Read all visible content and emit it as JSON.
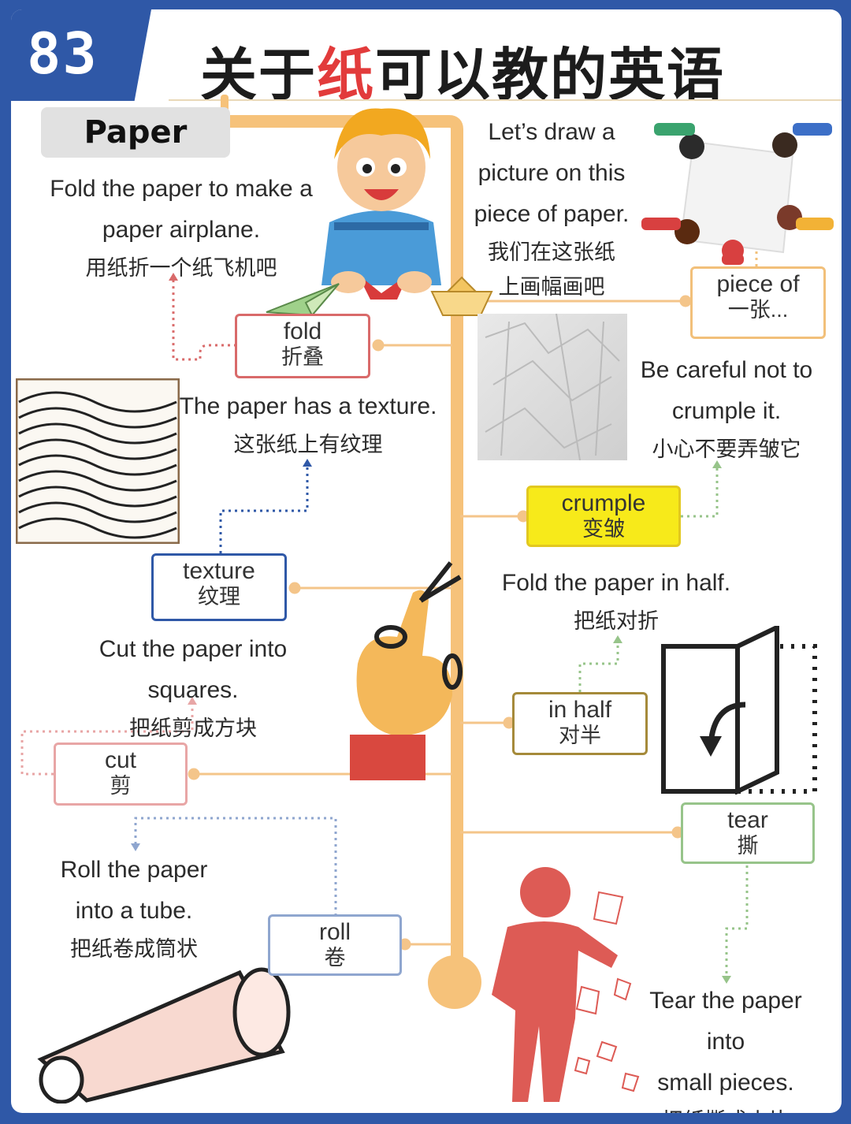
{
  "header": {
    "number": "83",
    "title_before": "关于",
    "title_highlight": "纸",
    "title_after": "可以教的英语"
  },
  "root_label": "Paper",
  "nodes": {
    "fold": {
      "en": "fold",
      "zh": "折叠"
    },
    "piece_of": {
      "en": "piece of",
      "zh": "一张..."
    },
    "texture": {
      "en": "texture",
      "zh": "纹理"
    },
    "crumple": {
      "en": "crumple",
      "zh": "变皱"
    },
    "cut": {
      "en": "cut",
      "zh": "剪"
    },
    "in_half": {
      "en": "in half",
      "zh": "对半"
    },
    "roll": {
      "en": "roll",
      "zh": "卷"
    },
    "tear": {
      "en": "tear",
      "zh": "撕"
    }
  },
  "sentences": {
    "fold": {
      "en1": "Fold the paper to make a",
      "en2": "paper airplane.",
      "zh": "用纸折一个纸飞机吧"
    },
    "piece_of": {
      "en1": "Let’s draw a",
      "en2": "picture on this",
      "en3": "piece of paper.",
      "zh1": "我们在这张纸",
      "zh2": "上画幅画吧"
    },
    "texture": {
      "en": "The paper has a texture.",
      "zh": "这张纸上有纹理"
    },
    "crumple": {
      "en1": "Be careful not to",
      "en2": "crumple it.",
      "zh": "小心不要弄皱它"
    },
    "cut": {
      "en": "Cut the paper into squares.",
      "zh": "把纸剪成方块"
    },
    "in_half": {
      "en": "Fold the paper in half.",
      "zh": "把纸对折"
    },
    "roll": {
      "en1": "Roll the paper",
      "en2": "into a tube.",
      "zh": "把纸卷成筒状"
    },
    "tear": {
      "en1": "Tear the paper into",
      "en2": "small pieces.",
      "zh": "把纸撕成小片"
    }
  },
  "colors": {
    "frame": "#2f58a7",
    "trunk": "#f6c27a",
    "fold_border": "#d96a6a",
    "piece_border": "#f2c07a",
    "texture_border": "#2f58a7",
    "crumple_fill": "#f7ea1a",
    "cut_border": "#e8a6a6",
    "in_half_border": "#a58a3a",
    "roll_border": "#8fa6cf",
    "tear_border": "#97c48a",
    "title_highlight": "#e23b3b"
  }
}
